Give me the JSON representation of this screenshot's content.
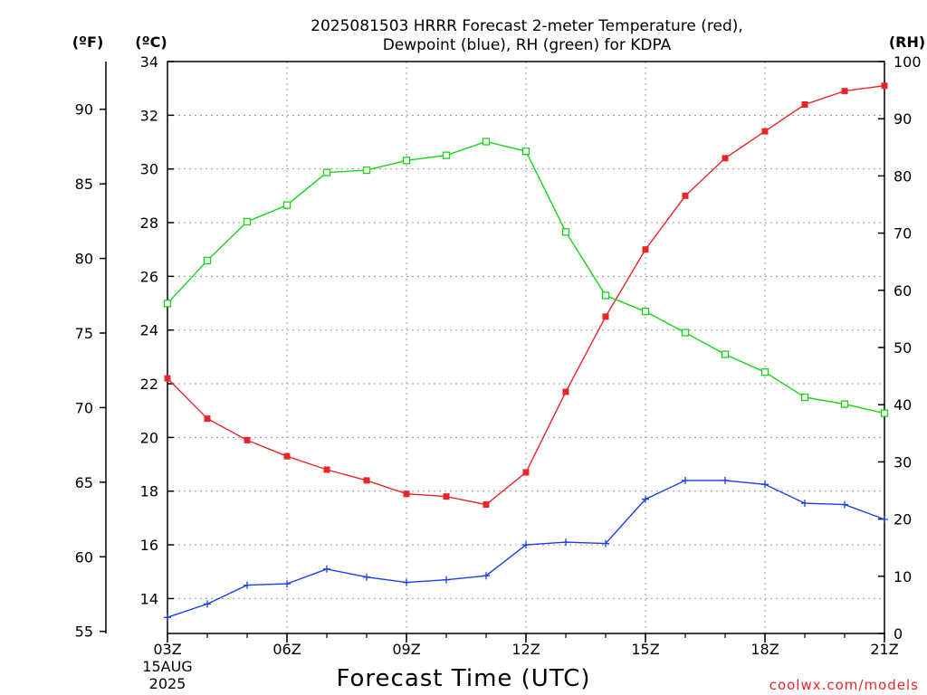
{
  "chart_data": {
    "type": "line",
    "title_line1": "2025081503 HRRR Forecast 2-meter Temperature (red),",
    "title_line2": "Dewpoint (blue), RH (green) for KDPA",
    "xlabel": "Forecast Time (UTC)",
    "credit": "coolwx.com/models",
    "units": {
      "fahrenheit": "(ºF)",
      "celsius": "(ºC)",
      "rh": "(RH)"
    },
    "grid": true,
    "x": [
      3,
      4,
      5,
      6,
      7,
      8,
      9,
      10,
      11,
      12,
      13,
      14,
      15,
      16,
      17,
      18,
      19,
      20,
      21
    ],
    "x_ticks": [
      {
        "hour": 3,
        "label": "03Z",
        "sub1": "15AUG",
        "sub2": "2025"
      },
      {
        "hour": 6,
        "label": "06Z"
      },
      {
        "hour": 9,
        "label": "09Z"
      },
      {
        "hour": 12,
        "label": "12Z"
      },
      {
        "hour": 15,
        "label": "15Z"
      },
      {
        "hour": 18,
        "label": "18Z"
      },
      {
        "hour": 21,
        "label": "21Z"
      }
    ],
    "axes": {
      "celsius": {
        "range": [
          12.7,
          34
        ],
        "ticks": [
          14,
          16,
          18,
          20,
          22,
          24,
          26,
          28,
          30,
          32,
          34
        ]
      },
      "fahrenheit": {
        "ticks": [
          55,
          60,
          65,
          70,
          75,
          80,
          85,
          90
        ]
      },
      "rh": {
        "range": [
          0,
          100
        ],
        "ticks": [
          0,
          10,
          20,
          30,
          40,
          50,
          60,
          70,
          80,
          90,
          100
        ]
      }
    },
    "series": [
      {
        "key": "temperature",
        "axis": "celsius",
        "color": "#e8262a",
        "marker": "filled-square",
        "values": [
          22.2,
          20.7,
          19.9,
          19.3,
          18.8,
          18.4,
          17.9,
          17.8,
          17.5,
          18.7,
          21.7,
          24.5,
          27.0,
          29.0,
          30.4,
          31.4,
          32.4,
          32.9,
          33.1
        ]
      },
      {
        "key": "dewpoint",
        "axis": "celsius",
        "color": "#1a3fe6",
        "marker": "plus",
        "values": [
          13.3,
          13.8,
          14.5,
          14.55,
          15.1,
          14.8,
          14.6,
          14.7,
          14.85,
          16.0,
          16.1,
          16.05,
          17.7,
          18.4,
          18.4,
          18.25,
          17.55,
          17.5,
          16.95
        ]
      },
      {
        "key": "rh",
        "axis": "rh",
        "color": "#18d418",
        "marker": "open-square",
        "values": [
          57.7,
          65.2,
          72.0,
          74.9,
          80.6,
          81.0,
          82.7,
          83.6,
          86.0,
          84.3,
          70.2,
          59.1,
          56.3,
          52.6,
          48.8,
          45.7,
          41.3,
          40.1,
          38.5
        ]
      }
    ]
  }
}
